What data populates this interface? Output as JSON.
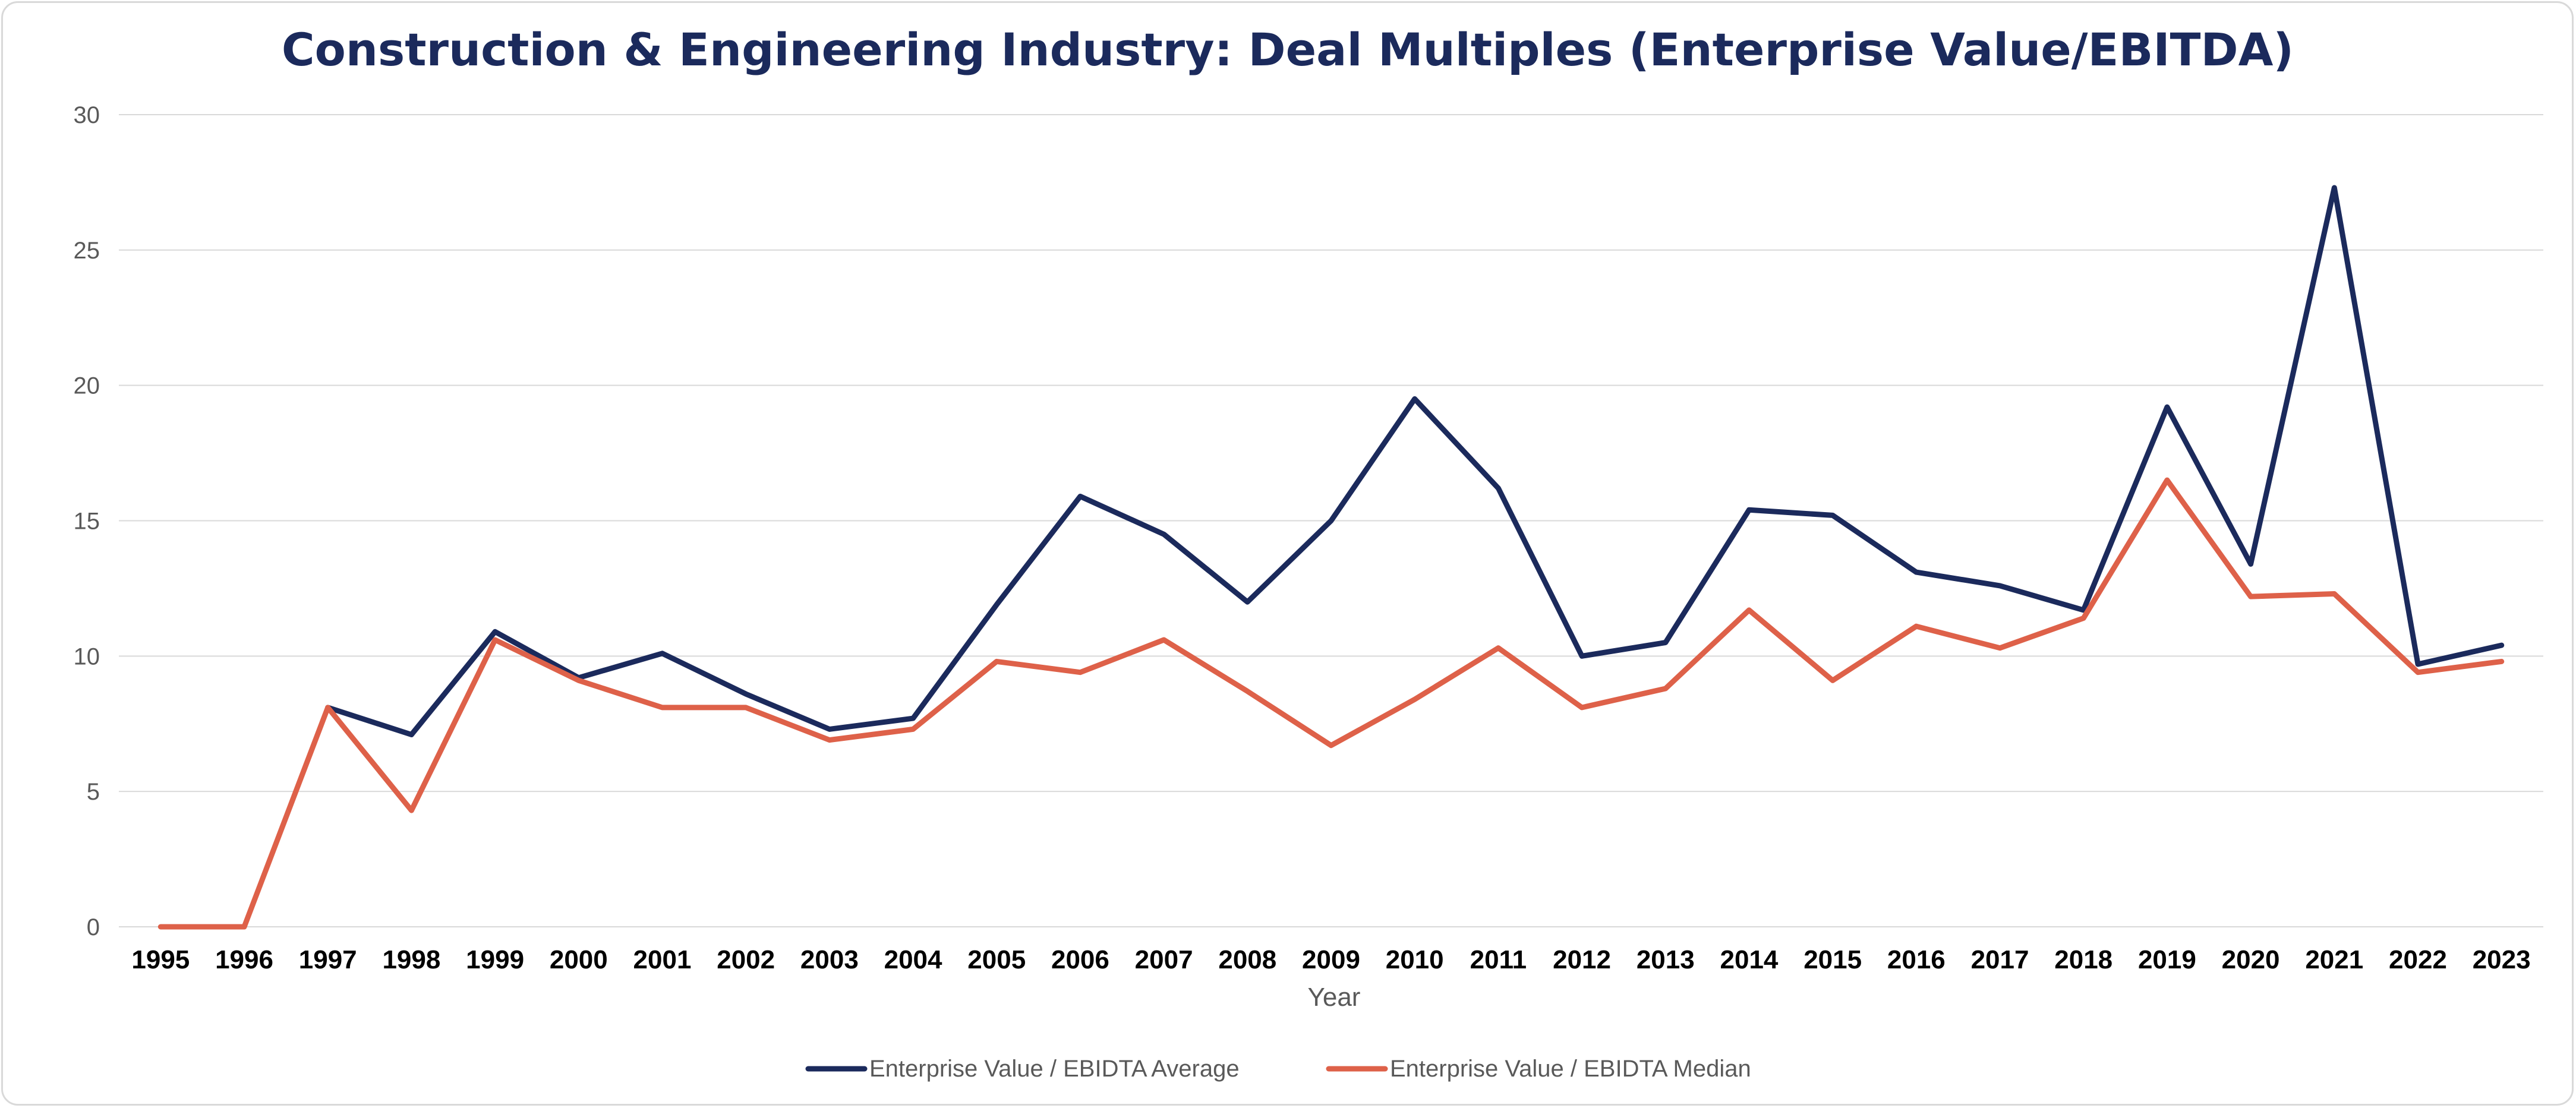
{
  "chart_data": {
    "type": "line",
    "title": "Construction & Engineering Industry: Deal Multiples (Enterprise Value/EBITDA)",
    "xlabel": "Year",
    "ylabel": "",
    "ylim": [
      0,
      30
    ],
    "yticks": [
      0,
      5,
      10,
      15,
      20,
      25,
      30
    ],
    "grid": true,
    "legend_position": "bottom",
    "categories": [
      "1995",
      "1996",
      "1997",
      "1998",
      "1999",
      "2000",
      "2001",
      "2002",
      "2003",
      "2004",
      "2005",
      "2006",
      "2007",
      "2008",
      "2009",
      "2010",
      "2011",
      "2012",
      "2013",
      "2014",
      "2015",
      "2016",
      "2017",
      "2018",
      "2019",
      "2020",
      "2021",
      "2022",
      "2023"
    ],
    "series": [
      {
        "name": "Enterprise Value / EBIDTA  Average",
        "color": "#1b2a5c",
        "values": [
          null,
          null,
          8.1,
          7.1,
          10.9,
          9.2,
          10.1,
          8.6,
          7.3,
          7.7,
          11.9,
          15.9,
          14.5,
          12.0,
          15.0,
          19.5,
          16.2,
          10.0,
          10.5,
          15.4,
          15.2,
          13.1,
          12.6,
          11.7,
          19.2,
          13.4,
          27.3,
          9.7,
          10.4
        ]
      },
      {
        "name": "Enterprise Value / EBIDTA  Median",
        "color": "#de6149",
        "values": [
          0,
          0,
          8.1,
          4.3,
          10.6,
          9.1,
          8.1,
          8.1,
          6.9,
          7.3,
          9.8,
          9.4,
          10.6,
          8.7,
          6.7,
          8.4,
          10.3,
          8.1,
          8.8,
          11.7,
          9.1,
          11.1,
          10.3,
          11.4,
          16.5,
          12.2,
          12.3,
          9.4,
          9.8
        ]
      }
    ]
  }
}
